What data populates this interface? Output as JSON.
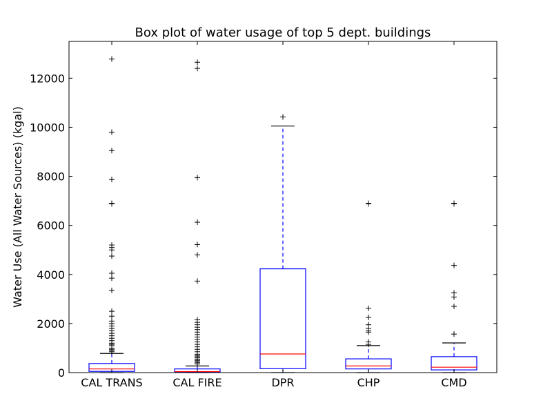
{
  "chart_data": {
    "type": "box",
    "title": "Box plot of water usage of top 5 dept. buildings",
    "xlabel": "",
    "ylabel": "Water Use (All Water Sources) (kgal)",
    "ylim": [
      0,
      13500
    ],
    "yticks": [
      "0",
      "2000",
      "4000",
      "6000",
      "8000",
      "10000",
      "12000"
    ],
    "categories": [
      "CAL TRANS",
      "CAL FIRE",
      "DPR",
      "CHP",
      "CMD"
    ],
    "colors": {
      "box": "#0000ff",
      "median": "#ff0000",
      "whisker": "#0000ff",
      "cap": "#000000",
      "flier": "#000000"
    },
    "boxes": [
      {
        "name": "CAL TRANS",
        "q1": 50,
        "median": 150,
        "q3": 370,
        "whisker_low": 0,
        "whisker_high": 780,
        "fliers": [
          12780,
          9800,
          9050,
          7870,
          6900,
          6880,
          5200,
          5100,
          5000,
          4750,
          4050,
          3850,
          3350,
          2500,
          2300,
          2100,
          2000,
          1900,
          1800,
          1700,
          1600,
          1500,
          1400,
          1300,
          1200,
          1150,
          1100,
          1000,
          950,
          900,
          850
        ]
      },
      {
        "name": "CAL FIRE",
        "q1": 10,
        "median": 40,
        "q3": 150,
        "whisker_low": 0,
        "whisker_high": 270,
        "fliers": [
          12650,
          12400,
          7950,
          6130,
          5220,
          4800,
          3730,
          2150,
          2050,
          1950,
          1850,
          1750,
          1650,
          1550,
          1450,
          1350,
          1250,
          1150,
          1050,
          950,
          850,
          750,
          700,
          650,
          600,
          550,
          500,
          450,
          400,
          350
        ]
      },
      {
        "name": "DPR",
        "q1": 160,
        "median": 760,
        "q3": 4230,
        "whisker_low": 0,
        "whisker_high": 10050,
        "fliers": [
          10420
        ]
      },
      {
        "name": "CHP",
        "q1": 150,
        "median": 270,
        "q3": 560,
        "whisker_low": 0,
        "whisker_high": 1100,
        "fliers": [
          6900,
          6880,
          2620,
          2250,
          1950,
          1800,
          1700,
          1650,
          1250,
          1150
        ]
      },
      {
        "name": "CMD",
        "q1": 110,
        "median": 220,
        "q3": 650,
        "whisker_low": 0,
        "whisker_high": 1210,
        "fliers": [
          6900,
          6880,
          4370,
          3250,
          3080,
          2700,
          1570
        ]
      }
    ]
  }
}
